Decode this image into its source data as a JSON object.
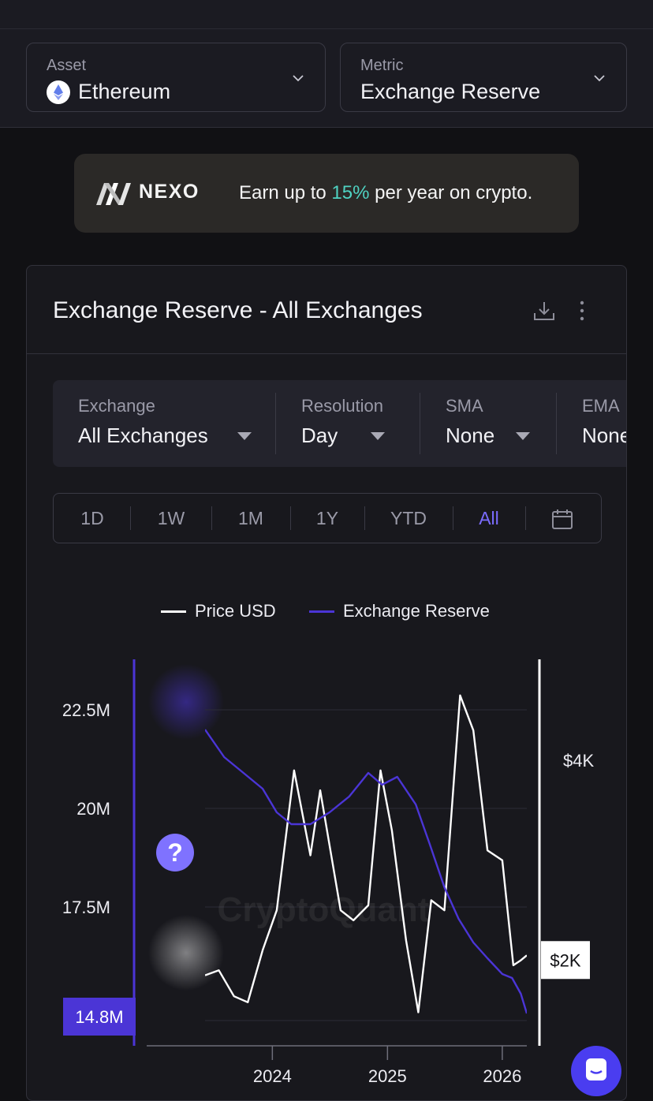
{
  "selectors": {
    "asset": {
      "label": "Asset",
      "value": "Ethereum"
    },
    "metric": {
      "label": "Metric",
      "value": "Exchange Reserve"
    }
  },
  "ad": {
    "brand": "NEXO",
    "copy_pre": "Earn up to ",
    "copy_highlight": "15%",
    "copy_post": " per year on crypto.",
    "highlight_color": "#4fd2c2"
  },
  "card": {
    "title": "Exchange Reserve - All Exchanges",
    "filters": [
      {
        "label": "Exchange",
        "value": "All Exchanges"
      },
      {
        "label": "Resolution",
        "value": "Day"
      },
      {
        "label": "SMA",
        "value": "None"
      },
      {
        "label": "EMA",
        "value": "None"
      }
    ],
    "ranges": [
      "1D",
      "1W",
      "1M",
      "1Y",
      "YTD",
      "All"
    ],
    "active_range": "All"
  },
  "help_label": "?",
  "chart_data": {
    "type": "line",
    "legend": [
      {
        "name": "Price USD",
        "color": "#ffffff"
      },
      {
        "name": "Exchange Reserve",
        "color": "#4b35d6"
      }
    ],
    "watermark": "CryptoQuant",
    "x_ticks": [
      "2024",
      "2025",
      "2026"
    ],
    "x_range": [
      "2023-06-01",
      "2026-03-20"
    ],
    "y_left": {
      "ticks": [
        "22.5M",
        "20M",
        "17.5M"
      ],
      "tick_values": [
        22500000,
        20000000,
        17500000
      ],
      "range": [
        14500000,
        23500000
      ],
      "current_label": "14.8M"
    },
    "y_right": {
      "ticks": [
        "$4K",
        "$2K"
      ],
      "tick_values": [
        4000,
        2000
      ],
      "range": [
        1350,
        4900
      ],
      "current_label": "$2K"
    },
    "series": [
      {
        "name": "Exchange Reserve",
        "axis": "left",
        "x": [
          "2023-06-01",
          "2023-08-01",
          "2023-10-01",
          "2023-12-01",
          "2024-01-15",
          "2024-03-01",
          "2024-05-01",
          "2024-07-01",
          "2024-09-01",
          "2024-11-01",
          "2024-12-15",
          "2025-02-01",
          "2025-04-01",
          "2025-05-15",
          "2025-07-01",
          "2025-08-15",
          "2025-10-01",
          "2025-11-15",
          "2026-01-01",
          "2026-02-01",
          "2026-03-01",
          "2026-03-20"
        ],
        "values": [
          22000000,
          21300000,
          20900000,
          20500000,
          19900000,
          19600000,
          19600000,
          19900000,
          20300000,
          20900000,
          20600000,
          20800000,
          20100000,
          19100000,
          18000000,
          17200000,
          16600000,
          16200000,
          15800000,
          15700000,
          15300000,
          14800000
        ]
      },
      {
        "name": "Price USD",
        "axis": "right",
        "x": [
          "2023-06-01",
          "2023-07-15",
          "2023-09-01",
          "2023-10-15",
          "2023-12-01",
          "2024-01-15",
          "2024-03-10",
          "2024-05-01",
          "2024-06-01",
          "2024-08-05",
          "2024-09-15",
          "2024-11-01",
          "2024-12-10",
          "2025-01-15",
          "2025-03-01",
          "2025-04-09",
          "2025-05-20",
          "2025-07-01",
          "2025-08-20",
          "2025-10-01",
          "2025-11-15",
          "2026-01-01",
          "2026-02-05",
          "2026-03-01",
          "2026-03-20"
        ],
        "values": [
          1850,
          1900,
          1640,
          1580,
          2100,
          2500,
          3900,
          3050,
          3700,
          2500,
          2400,
          2550,
          3900,
          3300,
          2200,
          1480,
          2600,
          2500,
          4650,
          4300,
          3100,
          3000,
          1950,
          2000,
          2050
        ]
      }
    ]
  }
}
